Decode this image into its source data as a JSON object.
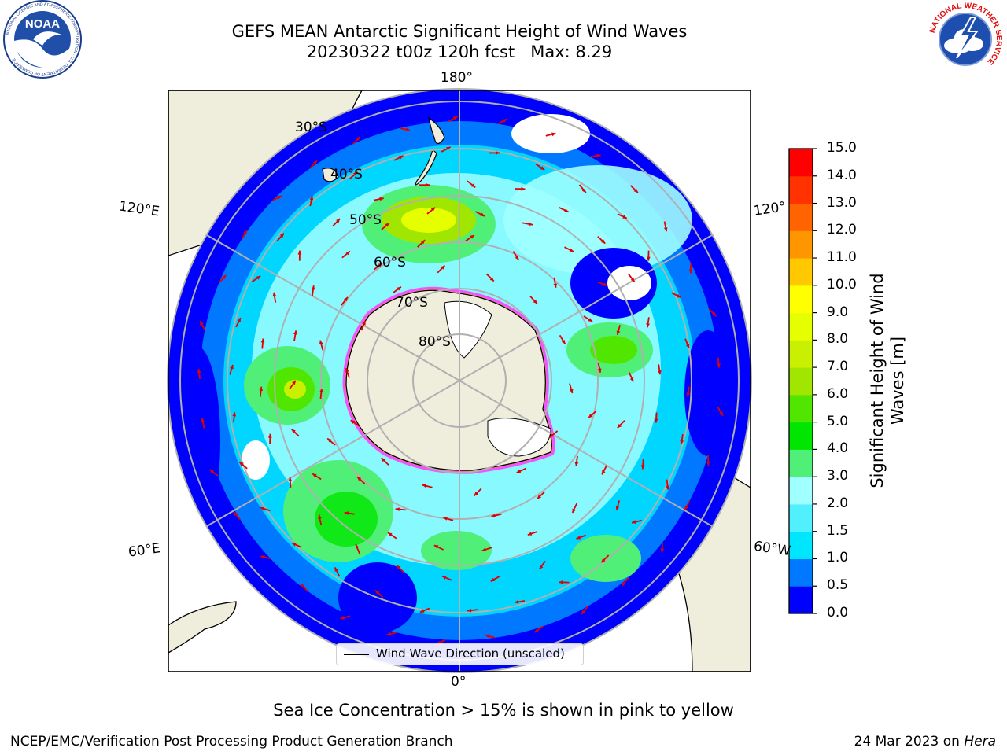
{
  "header": {
    "title_line1": "GEFS MEAN Antarctic Significant Height of Wind Waves",
    "run": "20230322 t00z 120h fcst",
    "max_text": "Max: 8.29"
  },
  "logos": {
    "noaa_text": "NOAA",
    "noaa_ring": "NATIONAL OCEANIC AND ATMOSPHERIC ADMINISTRATION · U.S. DEPARTMENT OF COMMERCE",
    "nws_ring": "NATIONAL WEATHER SERVICE"
  },
  "map": {
    "longitude_labels": {
      "top": "180°",
      "bottom": "0°",
      "left_upper": "120°E",
      "left_lower": "60°E",
      "right_upper": "120°",
      "right_lower": "60°W"
    },
    "latitude_labels": [
      "30°S",
      "40°S",
      "50°S",
      "60°S",
      "70°S",
      "80°S"
    ],
    "legend_label": "Wind Wave Direction (unscaled)",
    "colors": {
      "land": "#efeddc",
      "ocean_low": "#0000ff",
      "ice_edge": "#ff40ff",
      "arrow": "#e00000",
      "grid": "#b0b0b0"
    }
  },
  "colorbar": {
    "label": "Significant Height of Wind Waves [m]",
    "ticks": [
      "0.0",
      "0.5",
      "1.0",
      "1.5",
      "2.0",
      "3.0",
      "4.0",
      "5.0",
      "6.0",
      "7.0",
      "8.0",
      "9.0",
      "10.0",
      "11.0",
      "12.0",
      "13.0",
      "14.0",
      "15.0"
    ],
    "colors": [
      "#0000ff",
      "#0078ff",
      "#00e6ff",
      "#50f0ff",
      "#a0ffff",
      "#50f078",
      "#00e600",
      "#50e600",
      "#a0e600",
      "#c8f000",
      "#e6ff00",
      "#ffff00",
      "#ffc800",
      "#ff9600",
      "#ff6400",
      "#ff3200",
      "#ff0000"
    ]
  },
  "caption": "Sea Ice Concentration > 15% is shown in pink to yellow",
  "footer": {
    "left": "NCEP/EMC/Verification Post Processing Product Generation Branch",
    "right_date": "24 Mar 2023 on",
    "right_machine": "Hera"
  }
}
